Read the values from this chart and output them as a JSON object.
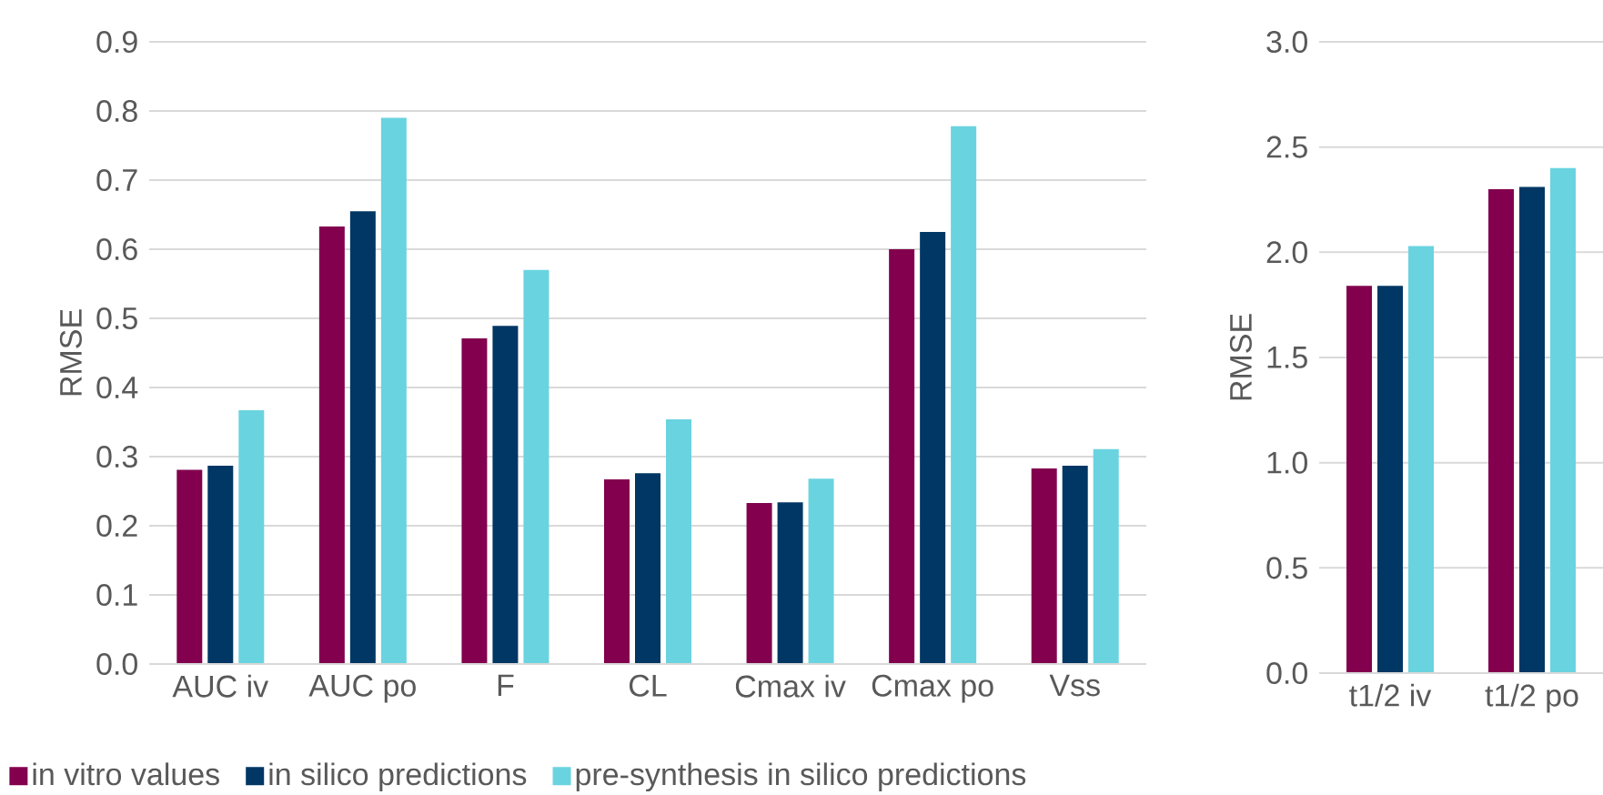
{
  "chart_data": [
    {
      "type": "bar",
      "ylabel": "RMSE",
      "categories": [
        "AUC iv",
        "AUC po",
        "F",
        "CL",
        "Cmax iv",
        "Cmax po",
        "Vss"
      ],
      "series": [
        {
          "name": "in vitro values",
          "color": "#82004e",
          "values": [
            0.281,
            0.633,
            0.471,
            0.267,
            0.233,
            0.6,
            0.283
          ]
        },
        {
          "name": "in silico predictions",
          "color": "#003764",
          "values": [
            0.287,
            0.655,
            0.489,
            0.276,
            0.234,
            0.625,
            0.287
          ]
        },
        {
          "name": "pre-synthesis in silico predictions",
          "color": "#6ad3e0",
          "values": [
            0.367,
            0.79,
            0.57,
            0.354,
            0.268,
            0.778,
            0.311
          ]
        }
      ],
      "ylim": [
        0,
        0.9
      ],
      "yticks": [
        {
          "value": 0,
          "label": "0.0"
        },
        0.1,
        0.2,
        0.3,
        0.4,
        0.5,
        0.6,
        0.7,
        0.8,
        0.9
      ],
      "grid": "y",
      "legend": "bottom"
    },
    {
      "type": "bar",
      "ylabel": "RMSE",
      "categories": [
        "t1/2 iv",
        "t1/2 po"
      ],
      "series": [
        {
          "color": "#82004e",
          "values": [
            1.84,
            2.3
          ]
        },
        {
          "color": "#003764",
          "values": [
            1.84,
            2.31
          ]
        },
        {
          "color": "#6ad3e0",
          "values": [
            2.03,
            2.4
          ]
        }
      ],
      "ylim": [
        0,
        3.0
      ],
      "yticks": [
        {
          "value": 0,
          "label": "0.0"
        },
        0.5,
        {
          "value": 1,
          "label": "1.0"
        },
        1.5,
        {
          "value": 2,
          "label": "2.0"
        },
        2.5,
        {
          "value": 3,
          "label": "3.0"
        }
      ],
      "grid": "y"
    }
  ]
}
